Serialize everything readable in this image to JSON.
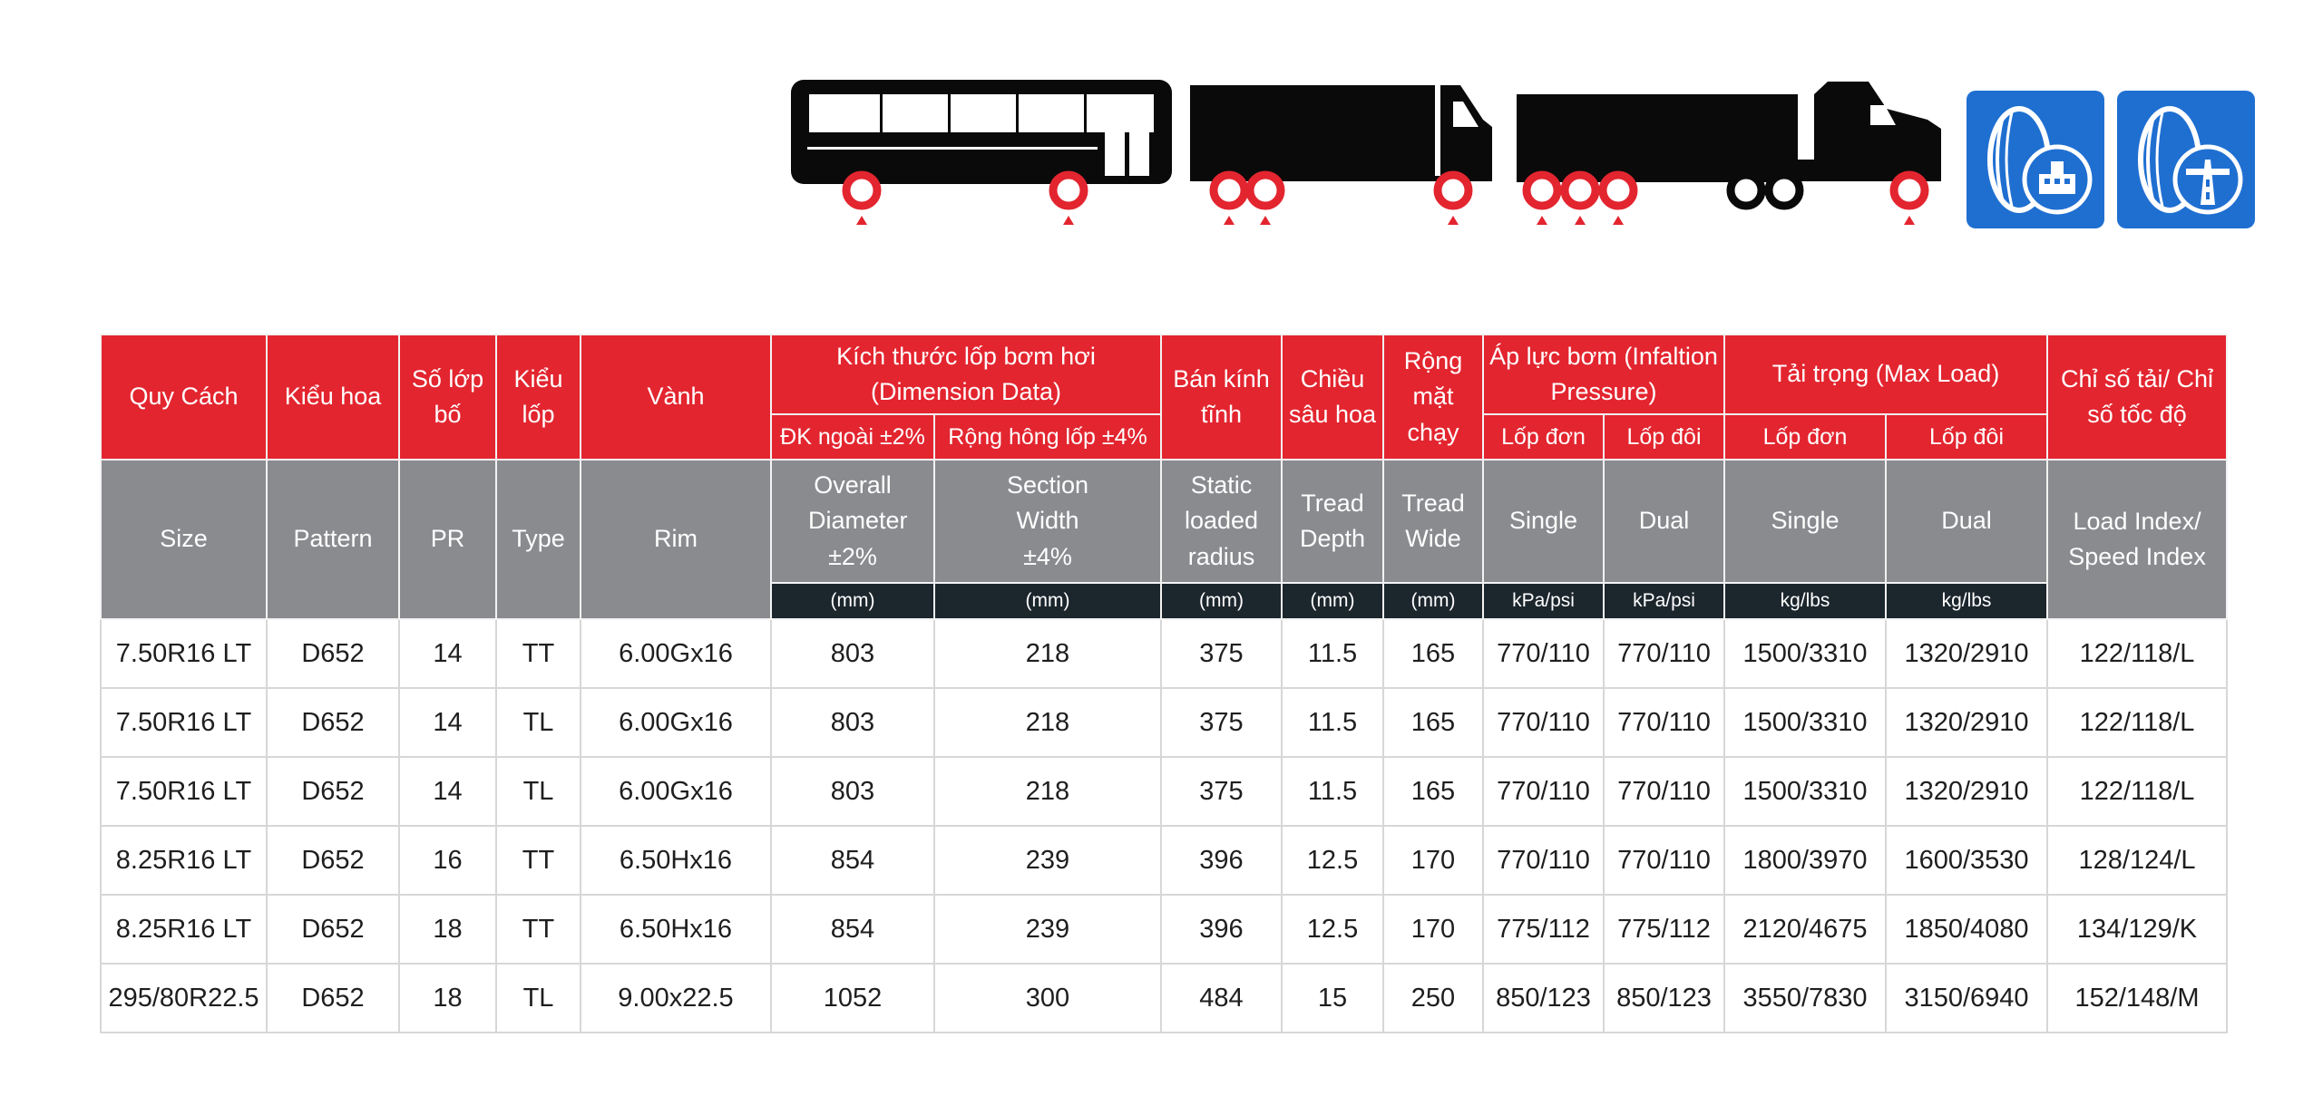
{
  "header": {
    "vn": {
      "size": "Quy Cách",
      "pattern": "Kiểu hoa",
      "pr": "Số lớp bố",
      "type": "Kiểu lốp",
      "rim": "Vành",
      "dimension_group": "Kích thước lốp bơm hơi (Dimension Data)",
      "overall_diameter": "ĐK ngoài ±2%",
      "section_width": "Rộng hông lốp ±4%",
      "static_radius": "Bán kính tĩnh",
      "tread_depth": "Chiều sâu hoa",
      "tread_wide": "Rộng mặt chạy",
      "inflation_group": "Áp lực bơm (Infaltion Pressure)",
      "inflation_single": "Lốp đơn",
      "inflation_dual": "Lốp đôi",
      "load_group": "Tải trọng (Max Load)",
      "load_single": "Lốp đơn",
      "load_dual": "Lốp đôi",
      "load_speed_index": "Chỉ số tải/ Chỉ số tốc độ"
    },
    "en": {
      "size": "Size",
      "pattern": "Pattern",
      "pr": "PR",
      "type": "Type",
      "rim": "Rim",
      "overall_diameter": "Overall Diameter ±2%",
      "section_width": "Section Width ±4%",
      "static_radius": "Static loaded radius",
      "tread_depth": "Tread Depth",
      "tread_wide": "Tread Wide",
      "inflation_single": "Single",
      "inflation_dual": "Dual",
      "load_single": "Single",
      "load_dual": "Dual",
      "load_speed_index": "Load Index/ Speed Index"
    },
    "units": {
      "mm": "(mm)",
      "pressure": "kPa/psi",
      "load": "kg/lbs"
    }
  },
  "rows": [
    [
      "7.50R16 LT",
      "D652",
      "14",
      "TT",
      "6.00Gx16",
      "803",
      "218",
      "375",
      "11.5",
      "165",
      "770/110",
      "770/110",
      "1500/3310",
      "1320/2910",
      "122/118/L"
    ],
    [
      "7.50R16 LT",
      "D652",
      "14",
      "TL",
      "6.00Gx16",
      "803",
      "218",
      "375",
      "11.5",
      "165",
      "770/110",
      "770/110",
      "1500/3310",
      "1320/2910",
      "122/118/L"
    ],
    [
      "7.50R16 LT",
      "D652",
      "14",
      "TL",
      "6.00Gx16",
      "803",
      "218",
      "375",
      "11.5",
      "165",
      "770/110",
      "770/110",
      "1500/3310",
      "1320/2910",
      "122/118/L"
    ],
    [
      "8.25R16 LT",
      "D652",
      "16",
      "TT",
      "6.50Hx16",
      "854",
      "239",
      "396",
      "12.5",
      "170",
      "770/110",
      "770/110",
      "1800/3970",
      "1600/3530",
      "128/124/L"
    ],
    [
      "8.25R16 LT",
      "D652",
      "18",
      "TT",
      "6.50Hx16",
      "854",
      "239",
      "396",
      "12.5",
      "170",
      "775/112",
      "775/112",
      "2120/4675",
      "1850/4080",
      "134/129/K"
    ],
    [
      "295/80R22.5",
      "D652",
      "18",
      "TL",
      "9.00x22.5",
      "1052",
      "300",
      "484",
      "15",
      "250",
      "850/123",
      "850/123",
      "3550/7830",
      "3150/6940",
      "152/148/M"
    ]
  ],
  "icons": {
    "vehicles": [
      "bus-icon",
      "rigid-truck-icon",
      "tractor-trailer-icon"
    ],
    "wheel_marker": "wheel-position-icon",
    "usage": [
      "urban-road-tire-icon",
      "highway-tire-icon"
    ]
  },
  "colors": {
    "header_red": "#e3252f",
    "header_grey": "#8a8b8f",
    "unit_dark": "#1c262d",
    "icon_blue": "#1f6fd1",
    "marker_red": "#e3252f"
  }
}
